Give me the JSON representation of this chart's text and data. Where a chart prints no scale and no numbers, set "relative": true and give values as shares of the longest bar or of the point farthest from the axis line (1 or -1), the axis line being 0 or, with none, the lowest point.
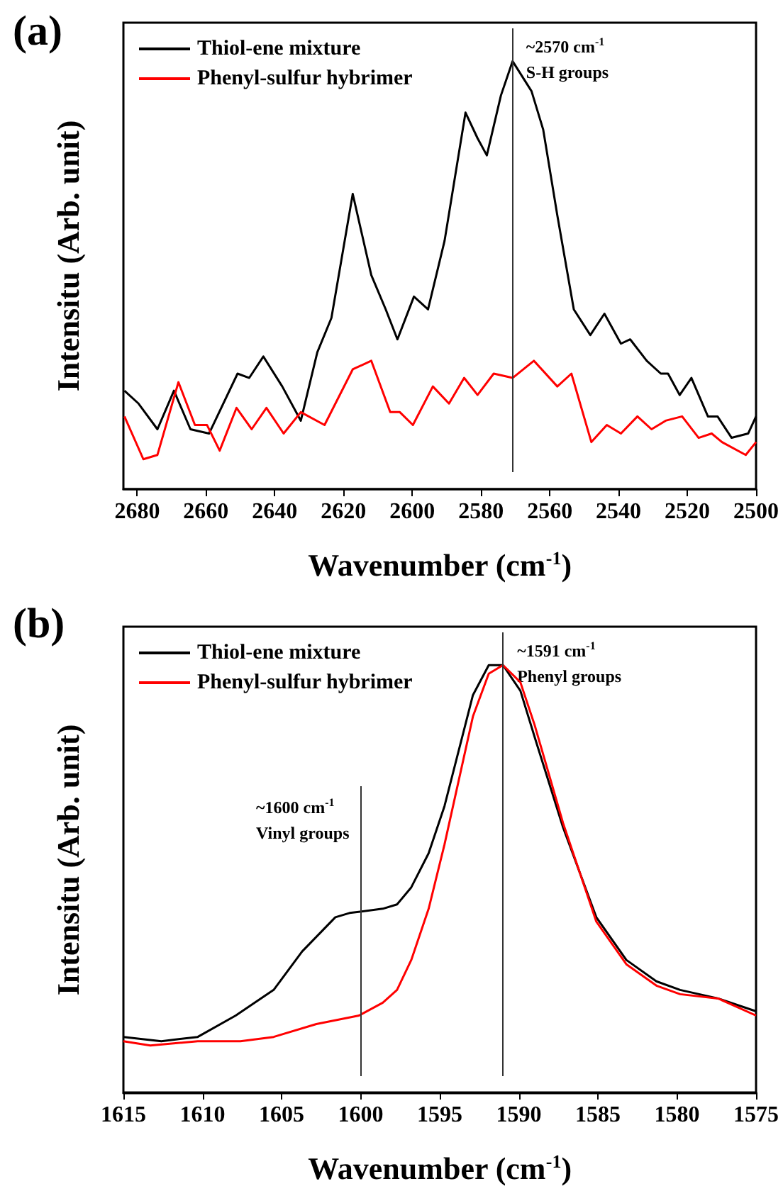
{
  "chart_data": [
    {
      "type": "line",
      "title": "(a)",
      "xlabel": "Wavenumber (cm$^{-1}$)",
      "ylabel": "Intensitu (Arb. unit)",
      "relative": true,
      "xlim": [
        2684,
        2500
      ],
      "xticks": [
        2680,
        2660,
        2640,
        2620,
        2600,
        2580,
        2560,
        2540,
        2520,
        2500
      ],
      "tick_labels": "x",
      "legend": "top left",
      "marker": "none",
      "line_style": "solid",
      "grid": false,
      "ref_lines": [
        {
          "axis": "x",
          "value": 2571,
          "label": "~2570 cm$^{-1}$\nS-H groups"
        }
      ],
      "series": [
        {
          "name": "Thiol-ene mixture",
          "color": "#000000",
          "x": [
            2683.7,
            2679.6,
            2674.1,
            2669.3,
            2664.5,
            2659.1,
            2650.8,
            2647.4,
            2643.3,
            2637.8,
            2632.4,
            2627.6,
            2623.5,
            2617.3,
            2611.9,
            2607.7,
            2604.3,
            2599.5,
            2595.4,
            2590.6,
            2584.5,
            2581.0,
            2578.3,
            2574.2,
            2570.8,
            2565.3,
            2561.9,
            2557.8,
            2553.0,
            2548.2,
            2544.1,
            2539.3,
            2536.6,
            2531.8,
            2527.7,
            2525.6,
            2522.2,
            2518.8,
            2514.0,
            2511.2,
            2507.1,
            2502.3,
            2500
          ],
          "values": [
            0.23,
            0.2,
            0.14,
            0.23,
            0.14,
            0.13,
            0.27,
            0.26,
            0.31,
            0.24,
            0.16,
            0.32,
            0.4,
            0.69,
            0.5,
            0.42,
            0.35,
            0.45,
            0.42,
            0.58,
            0.88,
            0.82,
            0.78,
            0.92,
            1.0,
            0.93,
            0.84,
            0.64,
            0.42,
            0.36,
            0.41,
            0.34,
            0.35,
            0.3,
            0.27,
            0.27,
            0.22,
            0.26,
            0.17,
            0.17,
            0.12,
            0.13,
            0.17
          ]
        },
        {
          "name": "Phenyl-sulfur hybrimer",
          "color": "#ff0000",
          "x": [
            2683.7,
            2678.2,
            2674.1,
            2668.0,
            2663.2,
            2659.7,
            2656.0,
            2651.1,
            2646.7,
            2642.4,
            2637.4,
            2632.4,
            2625.5,
            2617.3,
            2611.9,
            2606.4,
            2603.6,
            2599.8,
            2594.0,
            2589.3,
            2584.9,
            2581.0,
            2576.3,
            2570.8,
            2564.6,
            2557.8,
            2553.7,
            2547.9,
            2543.4,
            2539.3,
            2534.5,
            2530.4,
            2526.3,
            2521.5,
            2516.7,
            2512.9,
            2509.9,
            2503.0,
            2500
          ],
          "values": [
            0.17,
            0.07,
            0.08,
            0.25,
            0.15,
            0.15,
            0.09,
            0.19,
            0.14,
            0.19,
            0.13,
            0.18,
            0.15,
            0.28,
            0.3,
            0.18,
            0.18,
            0.15,
            0.24,
            0.2,
            0.26,
            0.22,
            0.27,
            0.26,
            0.3,
            0.24,
            0.27,
            0.11,
            0.15,
            0.13,
            0.17,
            0.14,
            0.16,
            0.17,
            0.12,
            0.13,
            0.11,
            0.08,
            0.11
          ]
        }
      ]
    },
    {
      "type": "line",
      "title": "(b)",
      "xlabel": "Wavenumber (cm$^{-1}$)",
      "ylabel": "Intensitu (Arb. unit)",
      "relative": true,
      "xlim": [
        1615,
        1575
      ],
      "xticks": [
        1615,
        1610,
        1605,
        1600,
        1595,
        1590,
        1585,
        1580,
        1575
      ],
      "tick_labels": "x",
      "legend": "top left",
      "marker": "none",
      "line_style": "solid",
      "grid": false,
      "ref_lines": [
        {
          "axis": "x",
          "value": 1600,
          "label": "~1600 cm$^{-1}$\nVinyl groups"
        },
        {
          "axis": "x",
          "value": 1591,
          "label": "~1591 cm$^{-1}$\nPhenyl groups"
        }
      ],
      "series": [
        {
          "name": "Thiol-ene mixture",
          "color": "#000000",
          "x": [
            1615,
            1612.6,
            1610.3,
            1607.9,
            1605.5,
            1603.7,
            1601.6,
            1600.7,
            1598.6,
            1597.7,
            1596.8,
            1595.7,
            1594.7,
            1592.9,
            1591.9,
            1591.0,
            1589.9,
            1588.9,
            1587.2,
            1585.1,
            1583.2,
            1581.3,
            1579.8,
            1577.4,
            1575
          ],
          "values": [
            0.13,
            0.12,
            0.13,
            0.18,
            0.24,
            0.33,
            0.41,
            0.42,
            0.43,
            0.44,
            0.48,
            0.56,
            0.67,
            0.93,
            1.0,
            1.0,
            0.94,
            0.82,
            0.62,
            0.41,
            0.31,
            0.26,
            0.24,
            0.22,
            0.19
          ]
        },
        {
          "name": "Phenyl-sulfur hybrimer",
          "color": "#ff0000",
          "x": [
            1615,
            1613.3,
            1610.3,
            1607.6,
            1605.5,
            1602.8,
            1600.1,
            1598.6,
            1597.7,
            1596.8,
            1595.7,
            1594.7,
            1592.9,
            1591.9,
            1591.0,
            1589.9,
            1589.0,
            1587.2,
            1585.1,
            1583.2,
            1581.3,
            1579.8,
            1577.4,
            1575
          ],
          "values": [
            0.12,
            0.11,
            0.12,
            0.12,
            0.13,
            0.16,
            0.18,
            0.21,
            0.24,
            0.31,
            0.43,
            0.58,
            0.88,
            0.98,
            1.0,
            0.96,
            0.86,
            0.63,
            0.4,
            0.3,
            0.25,
            0.23,
            0.22,
            0.18
          ]
        }
      ]
    }
  ]
}
